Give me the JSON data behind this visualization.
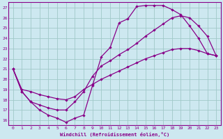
{
  "xlabel": "Windchill (Refroidissement éolien,°C)",
  "bg_color": "#cde8f0",
  "grid_color": "#a0c8c8",
  "line_color": "#880088",
  "spine_color": "#880088",
  "xlim": [
    -0.5,
    23.5
  ],
  "ylim": [
    15.5,
    27.5
  ],
  "xticks": [
    0,
    1,
    2,
    3,
    4,
    5,
    6,
    7,
    8,
    9,
    10,
    11,
    12,
    13,
    14,
    15,
    16,
    17,
    18,
    19,
    20,
    21,
    22,
    23
  ],
  "yticks": [
    16,
    17,
    18,
    19,
    20,
    21,
    22,
    23,
    24,
    25,
    26,
    27
  ],
  "line1_x": [
    0,
    1,
    2,
    3,
    4,
    5,
    6,
    7,
    8,
    9,
    10,
    11,
    12,
    13,
    14,
    15,
    16,
    17,
    18,
    19,
    20,
    21,
    22,
    23
  ],
  "line1_y": [
    21.0,
    18.8,
    17.8,
    17.0,
    16.5,
    16.2,
    15.8,
    16.2,
    16.5,
    19.4,
    22.2,
    23.1,
    25.5,
    25.9,
    27.1,
    27.2,
    27.2,
    27.2,
    26.8,
    26.3,
    25.2,
    24.0,
    22.5,
    22.3
  ],
  "line2_x": [
    0,
    1,
    2,
    3,
    4,
    5,
    6,
    7,
    8,
    9,
    10,
    11,
    12,
    13,
    14,
    15,
    16,
    17,
    18,
    19,
    20,
    21,
    22,
    23
  ],
  "line2_y": [
    21.0,
    18.8,
    17.8,
    17.5,
    17.2,
    17.0,
    17.0,
    17.8,
    18.8,
    20.3,
    21.3,
    21.8,
    22.4,
    22.9,
    23.5,
    24.2,
    24.8,
    25.4,
    26.0,
    26.2,
    26.0,
    25.2,
    24.2,
    22.3
  ],
  "line3_x": [
    0,
    1,
    2,
    3,
    4,
    5,
    6,
    7,
    8,
    9,
    10,
    11,
    12,
    13,
    14,
    15,
    16,
    17,
    18,
    19,
    20,
    21,
    22,
    23
  ],
  "line3_y": [
    21.0,
    19.0,
    18.8,
    18.5,
    18.3,
    18.1,
    18.0,
    18.3,
    19.0,
    19.5,
    20.0,
    20.4,
    20.8,
    21.2,
    21.6,
    22.0,
    22.3,
    22.6,
    22.9,
    23.0,
    23.0,
    22.8,
    22.5,
    22.3
  ]
}
